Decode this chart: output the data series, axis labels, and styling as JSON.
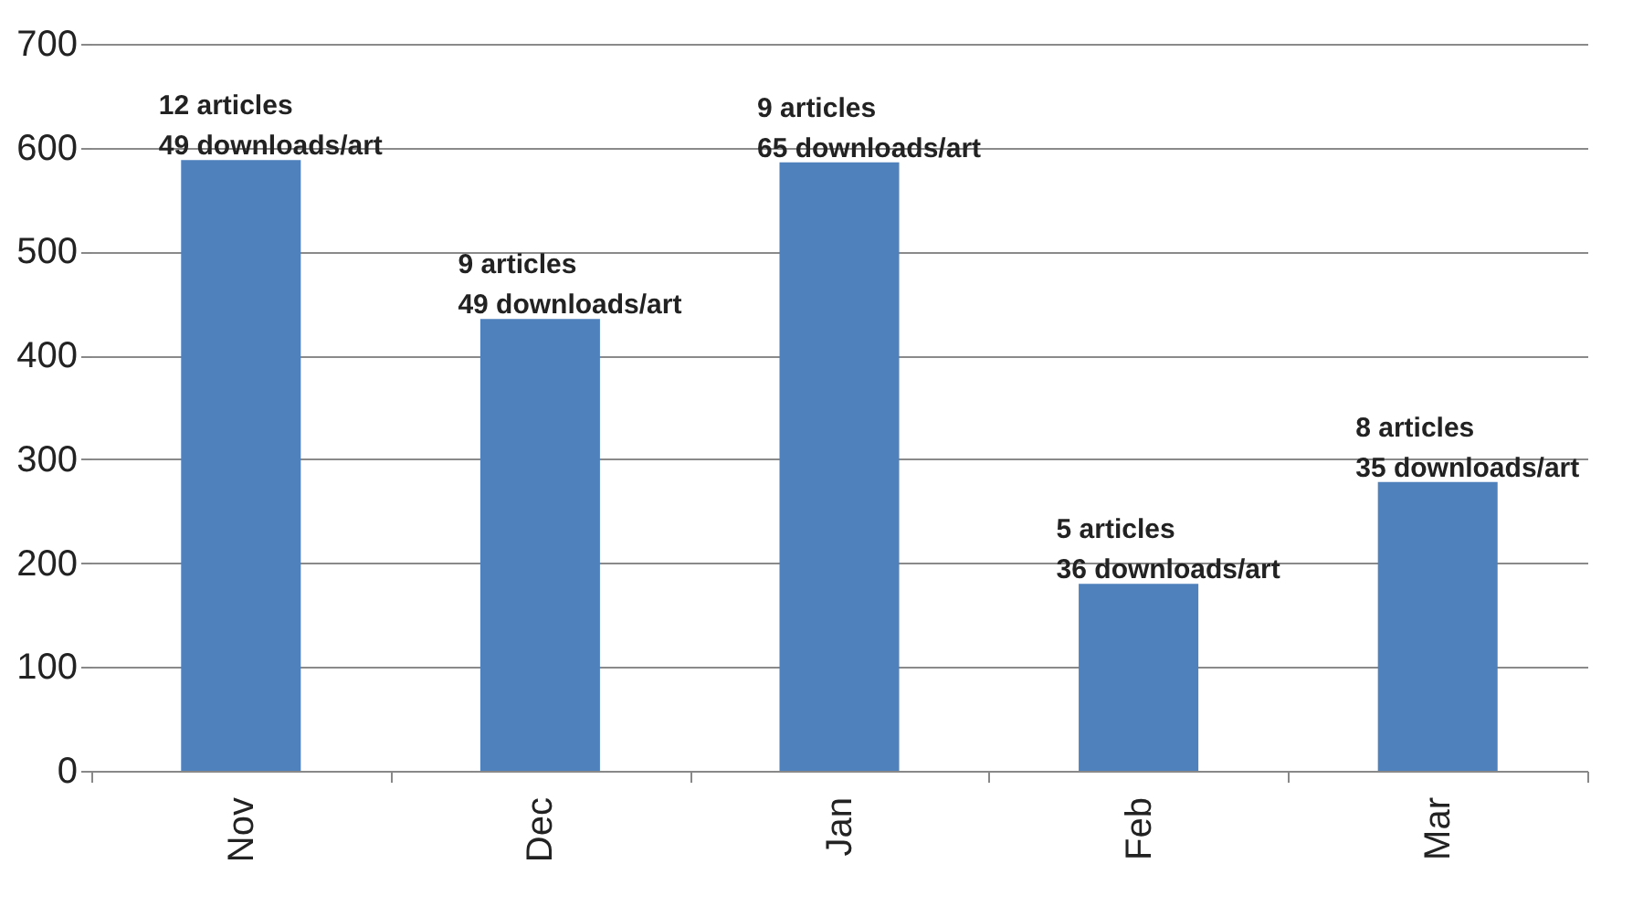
{
  "chart_data": {
    "type": "bar",
    "categories": [
      "Nov",
      "Dec",
      "Jan",
      "Feb",
      "Mar"
    ],
    "values": [
      588,
      435,
      586,
      180,
      278
    ],
    "color": "#4f81bd",
    "ylim": [
      0,
      700
    ],
    "yticks": [
      0,
      100,
      200,
      300,
      400,
      500,
      600,
      700
    ],
    "grid": "y",
    "annotations": [
      {
        "text": "12 articles\n49 downloads/art",
        "x": "Nov",
        "y": 588
      },
      {
        "text": "9 articles\n49 downloads/art",
        "x": "Dec",
        "y": 435
      },
      {
        "text": "9 articles\n65 downloads/art",
        "x": "Jan",
        "y": 586
      },
      {
        "text": "5 articles\n36 downloads/art",
        "x": "Feb",
        "y": 180
      },
      {
        "text": "8 articles\n35 downloads/art",
        "x": "Mar",
        "y": 278
      }
    ]
  }
}
